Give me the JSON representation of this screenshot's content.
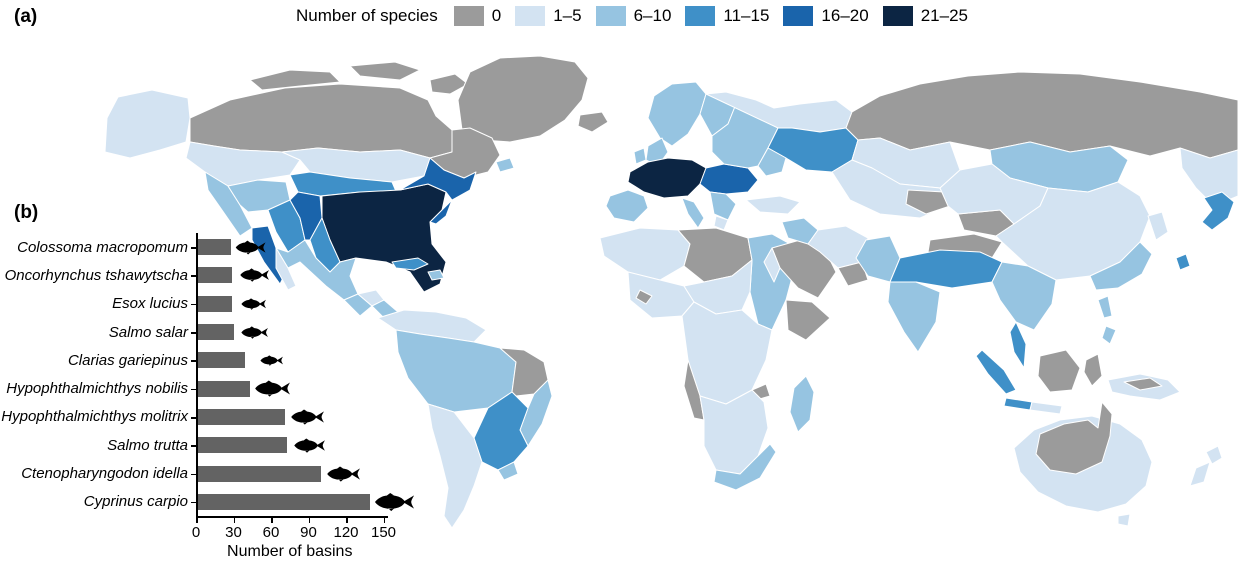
{
  "panel_a_label": "(a)",
  "panel_b_label": "(b)",
  "legend": {
    "title": "Number of species",
    "classes": [
      {
        "label": "0",
        "color": "#9b9b9b"
      },
      {
        "label": "1–5",
        "color": "#d3e3f2"
      },
      {
        "label": "6–10",
        "color": "#96c4e1"
      },
      {
        "label": "11–15",
        "color": "#3f90c8"
      },
      {
        "label": "16–20",
        "color": "#1a64ab"
      },
      {
        "label": "21–25",
        "color": "#0c2543"
      }
    ]
  },
  "map": {
    "kind": "world river-basin choropleth",
    "ocean_color": "#ffffff",
    "no_data_color": "#9b9b9b"
  },
  "chart_data": {
    "type": "bar",
    "orientation": "horizontal",
    "xlabel": "Number of basins",
    "xlim": [
      0,
      150
    ],
    "xticks": [
      0,
      30,
      60,
      90,
      120,
      150
    ],
    "bar_color": "#636363",
    "fish_color": "#000000",
    "categories": [
      "Colossoma macropomum",
      "Oncorhynchus tshawytscha",
      "Esox lucius",
      "Salmo salar",
      "Clarias gariepinus",
      "Hypophthalmichthys nobilis",
      "Hypophthalmichthys molitrix",
      "Salmo trutta",
      "Ctenopharyngodon idella",
      "Cyprinus carpio"
    ],
    "values": [
      28,
      29,
      29,
      30,
      39,
      43,
      71,
      73,
      100,
      139
    ],
    "items": [
      {
        "species": "Colossoma macropomum",
        "basins": 28,
        "fish_icon": "pacu-silhouette-icon",
        "fish_w": 32,
        "fish_h": 17
      },
      {
        "species": "Oncorhynchus tshawytscha",
        "basins": 29,
        "fish_icon": "salmon-silhouette-icon",
        "fish_w": 38,
        "fish_h": 14
      },
      {
        "species": "Esox lucius",
        "basins": 29,
        "fish_icon": "pike-silhouette-icon",
        "fish_w": 36,
        "fish_h": 12
      },
      {
        "species": "Salmo salar",
        "basins": 30,
        "fish_icon": "salmon-silhouette-icon",
        "fish_w": 34,
        "fish_h": 13
      },
      {
        "species": "Clarias gariepinus",
        "basins": 39,
        "fish_icon": "catfish-silhouette-icon",
        "fish_w": 46,
        "fish_h": 11
      },
      {
        "species": "Hypophthalmichthys nobilis",
        "basins": 43,
        "fish_icon": "bighead-carp-silhouette-icon",
        "fish_w": 38,
        "fish_h": 17
      },
      {
        "species": "Hypophthalmichthys molitrix",
        "basins": 71,
        "fish_icon": "silver-carp-silhouette-icon",
        "fish_w": 38,
        "fish_h": 16
      },
      {
        "species": "Salmo trutta",
        "basins": 73,
        "fish_icon": "trout-silhouette-icon",
        "fish_w": 38,
        "fish_h": 15
      },
      {
        "species": "Ctenopharyngodon idella",
        "basins": 100,
        "fish_icon": "grass-carp-silhouette-icon",
        "fish_w": 38,
        "fish_h": 16
      },
      {
        "species": "Cyprinus carpio",
        "basins": 139,
        "fish_icon": "common-carp-silhouette-icon",
        "fish_w": 42,
        "fish_h": 20
      }
    ]
  }
}
